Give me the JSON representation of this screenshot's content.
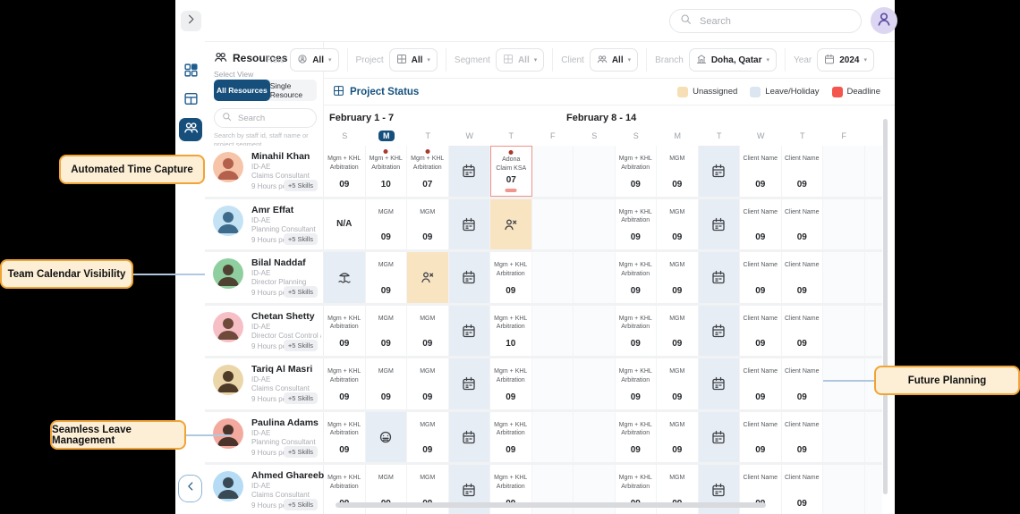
{
  "colors": {
    "accent": "#174F7C",
    "deadline_red": "#F4554D",
    "unassigned": "#F7DFB5",
    "leave_holiday": "#DCE6F1",
    "callout_border": "#F0A437",
    "callout_bg": "#FDEFD6"
  },
  "topbar": {
    "search_placeholder": "Search"
  },
  "panel": {
    "title": "Resources",
    "select_view": "Select View",
    "toggle_active": "All Resources",
    "toggle_inactive": "Single Resource",
    "search_placeholder": "Search",
    "hint": "Search by staff id, staff name or project segment"
  },
  "filters": [
    {
      "label": "Role",
      "value": "All",
      "icon": "role-icon",
      "disabled": false
    },
    {
      "label": "Project",
      "value": "All",
      "icon": "grid-icon",
      "disabled": false
    },
    {
      "label": "Segment",
      "value": "All",
      "icon": "grid-icon",
      "disabled": true
    },
    {
      "label": "Client",
      "value": "All",
      "icon": "people-icon",
      "disabled": false
    },
    {
      "label": "Branch",
      "value": "Doha, Qatar",
      "icon": "building-icon",
      "disabled": false
    },
    {
      "label": "Year",
      "value": "2024",
      "icon": "calendar-icon",
      "disabled": false
    }
  ],
  "status_bar": {
    "title": "Project Status"
  },
  "legend": [
    {
      "label": "Unassigned",
      "color": "#F7DFB5"
    },
    {
      "label": "Leave/Holiday",
      "color": "#DCE6F1"
    },
    {
      "label": "Deadline",
      "color": "#F4554D"
    }
  ],
  "calendar": {
    "week_labels": [
      "February  1 - 7",
      "February  8 - 14"
    ],
    "day_letters": [
      "S",
      "M",
      "T",
      "W",
      "T",
      "F",
      "S",
      "S",
      "M",
      "T",
      "W",
      "T",
      "F"
    ],
    "active_day_index": 1
  },
  "resources": [
    {
      "name": "Minahil Khan",
      "id": "ID-AE",
      "role": "Claims Consultant",
      "hours": "9 Hours per day",
      "skills": "+5 Skills",
      "avatar_bg": "#F6C4A8",
      "avatar_fg": "#B3604C",
      "cells": [
        {
          "type": "project",
          "title": "Mgm + KHL Arbitration",
          "hours": "09"
        },
        {
          "type": "project",
          "title": "Mgm + KHL Arbitration",
          "hours": "10",
          "dot": true
        },
        {
          "type": "project",
          "title": "Mgm + KHL Arbitration",
          "hours": "07",
          "dot": true
        },
        {
          "type": "leave",
          "icon": "calendar-icon"
        },
        {
          "type": "deadline",
          "title": "Adona Claim KSA",
          "hours": "07",
          "dot": true
        },
        {
          "type": "empty"
        },
        {
          "type": "empty"
        },
        {
          "type": "project",
          "title": "Mgm + KHL Arbitration",
          "hours": "09"
        },
        {
          "type": "project",
          "title": "MGM",
          "hours": "09"
        },
        {
          "type": "leave",
          "icon": "calendar-icon"
        },
        {
          "type": "project",
          "title": "Client Name",
          "hours": "09"
        },
        {
          "type": "project",
          "title": "Client Name",
          "hours": "09"
        },
        {
          "type": "empty"
        }
      ]
    },
    {
      "name": "Amr Effat",
      "id": "ID-AE",
      "role": "Planning Consultant",
      "hours": "9 Hours per day",
      "skills": "+5 Skills",
      "avatar_bg": "#C3E3F5",
      "avatar_fg": "#3E6B8C",
      "cells": [
        {
          "type": "na",
          "title": "N/A"
        },
        {
          "type": "project",
          "title": "MGM",
          "hours": "09"
        },
        {
          "type": "project",
          "title": "MGM",
          "hours": "09"
        },
        {
          "type": "leave",
          "icon": "calendar-icon"
        },
        {
          "type": "unassigned",
          "icon": "person-x-icon"
        },
        {
          "type": "empty"
        },
        {
          "type": "empty"
        },
        {
          "type": "project",
          "title": "Mgm + KHL Arbitration",
          "hours": "09"
        },
        {
          "type": "project",
          "title": "MGM",
          "hours": "09"
        },
        {
          "type": "leave",
          "icon": "calendar-icon"
        },
        {
          "type": "project",
          "title": "Client Name",
          "hours": "09"
        },
        {
          "type": "project",
          "title": "Client Name",
          "hours": "09"
        },
        {
          "type": "empty"
        }
      ]
    },
    {
      "name": "Bilal Naddaf",
      "id": "ID-AE",
      "role": "Director Planning",
      "hours": "9 Hours per day",
      "skills": "+5 Skills",
      "avatar_bg": "#8FCF9F",
      "avatar_fg": "#4F4232",
      "cells": [
        {
          "type": "leave",
          "icon": "beach-icon"
        },
        {
          "type": "project",
          "title": "MGM",
          "hours": "09"
        },
        {
          "type": "unassigned",
          "icon": "person-x-icon"
        },
        {
          "type": "leave",
          "icon": "calendar-icon"
        },
        {
          "type": "project",
          "title": "Mgm + KHL Arbitration",
          "hours": "09"
        },
        {
          "type": "empty"
        },
        {
          "type": "empty"
        },
        {
          "type": "project",
          "title": "Mgm + KHL Arbitration",
          "hours": "09"
        },
        {
          "type": "project",
          "title": "MGM",
          "hours": "09"
        },
        {
          "type": "leave",
          "icon": "calendar-icon"
        },
        {
          "type": "project",
          "title": "Client Name",
          "hours": "09"
        },
        {
          "type": "project",
          "title": "Client Name",
          "hours": "09"
        },
        {
          "type": "empty"
        }
      ]
    },
    {
      "name": "Chetan Shetty",
      "id": "ID-AE",
      "role": "Director Cost Control and C...",
      "hours": "9 Hours per day",
      "skills": "+5 Skills",
      "avatar_bg": "#F6BFC6",
      "avatar_fg": "#6E4A3A",
      "cells": [
        {
          "type": "project",
          "title": "Mgm + KHL Arbitration",
          "hours": "09"
        },
        {
          "type": "project",
          "title": "MGM",
          "hours": "09"
        },
        {
          "type": "project",
          "title": "MGM",
          "hours": "09"
        },
        {
          "type": "leave",
          "icon": "calendar-icon"
        },
        {
          "type": "project",
          "title": "Mgm + KHL Arbitration",
          "hours": "10"
        },
        {
          "type": "empty"
        },
        {
          "type": "empty"
        },
        {
          "type": "project",
          "title": "Mgm + KHL Arbitration",
          "hours": "09"
        },
        {
          "type": "project",
          "title": "MGM",
          "hours": "09"
        },
        {
          "type": "leave",
          "icon": "calendar-icon"
        },
        {
          "type": "project",
          "title": "Client Name",
          "hours": "09"
        },
        {
          "type": "project",
          "title": "Client Name",
          "hours": "09"
        },
        {
          "type": "empty"
        }
      ]
    },
    {
      "name": "Tariq Al Masri",
      "id": "ID-AE",
      "role": "Claims Consultant",
      "hours": "9 Hours per day",
      "skills": "+5 Skills",
      "avatar_bg": "#EBD6A9",
      "avatar_fg": "#4F3A28",
      "cells": [
        {
          "type": "project",
          "title": "Mgm + KHL Arbitration",
          "hours": "09"
        },
        {
          "type": "project",
          "title": "MGM",
          "hours": "09"
        },
        {
          "type": "project",
          "title": "MGM",
          "hours": "09"
        },
        {
          "type": "leave",
          "icon": "calendar-icon"
        },
        {
          "type": "project",
          "title": "Mgm + KHL Arbitration",
          "hours": "09"
        },
        {
          "type": "empty"
        },
        {
          "type": "empty"
        },
        {
          "type": "project",
          "title": "Mgm + KHL Arbitration",
          "hours": "09"
        },
        {
          "type": "project",
          "title": "MGM",
          "hours": "09"
        },
        {
          "type": "leave",
          "icon": "calendar-icon"
        },
        {
          "type": "project",
          "title": "Client Name",
          "hours": "09"
        },
        {
          "type": "project",
          "title": "Client Name",
          "hours": "09"
        },
        {
          "type": "empty"
        }
      ]
    },
    {
      "name": "Paulina Adams",
      "id": "ID-AE",
      "role": "Planning Consultant",
      "hours": "9 Hours per day",
      "skills": "+5 Skills",
      "avatar_bg": "#F4A99F",
      "avatar_fg": "#4A332B",
      "cells": [
        {
          "type": "project",
          "title": "Mgm + KHL Arbitration",
          "hours": "09"
        },
        {
          "type": "leave",
          "icon": "sick-face-icon"
        },
        {
          "type": "project",
          "title": "MGM",
          "hours": "09"
        },
        {
          "type": "leave",
          "icon": "calendar-icon"
        },
        {
          "type": "project",
          "title": "Mgm + KHL Arbitration",
          "hours": "09"
        },
        {
          "type": "empty"
        },
        {
          "type": "empty"
        },
        {
          "type": "project",
          "title": "Mgm + KHL Arbitration",
          "hours": "09"
        },
        {
          "type": "project",
          "title": "MGM",
          "hours": "09"
        },
        {
          "type": "leave",
          "icon": "calendar-icon"
        },
        {
          "type": "project",
          "title": "Client Name",
          "hours": "09"
        },
        {
          "type": "project",
          "title": "Client Name",
          "hours": "09"
        },
        {
          "type": "empty"
        }
      ]
    },
    {
      "name": "Ahmed Ghareeb",
      "id": "ID-AE",
      "role": "Claims Consultant",
      "hours": "9 Hours per day",
      "skills": "+5 Skills",
      "avatar_bg": "#B5DCF4",
      "avatar_fg": "#3A4A55",
      "cells": [
        {
          "type": "project",
          "title": "Mgm + KHL Arbitration",
          "hours": "09"
        },
        {
          "type": "project",
          "title": "MGM",
          "hours": "09"
        },
        {
          "type": "project",
          "title": "MGM",
          "hours": "09"
        },
        {
          "type": "leave",
          "icon": "calendar-icon"
        },
        {
          "type": "project",
          "title": "Mgm + KHL Arbitration",
          "hours": "09"
        },
        {
          "type": "empty"
        },
        {
          "type": "empty"
        },
        {
          "type": "project",
          "title": "Mgm + KHL Arbitration",
          "hours": "09"
        },
        {
          "type": "project",
          "title": "MGM",
          "hours": "09"
        },
        {
          "type": "leave",
          "icon": "calendar-icon"
        },
        {
          "type": "project",
          "title": "Client Name",
          "hours": "09"
        },
        {
          "type": "project",
          "title": "Client Name",
          "hours": "09"
        },
        {
          "type": "empty"
        }
      ]
    }
  ],
  "callouts": {
    "automated": {
      "label": "Automated Time Capture"
    },
    "team": {
      "label": "Team Calendar Visibility"
    },
    "seamless": {
      "label": "Seamless Leave Management"
    },
    "future": {
      "label": "Future Planning"
    }
  }
}
